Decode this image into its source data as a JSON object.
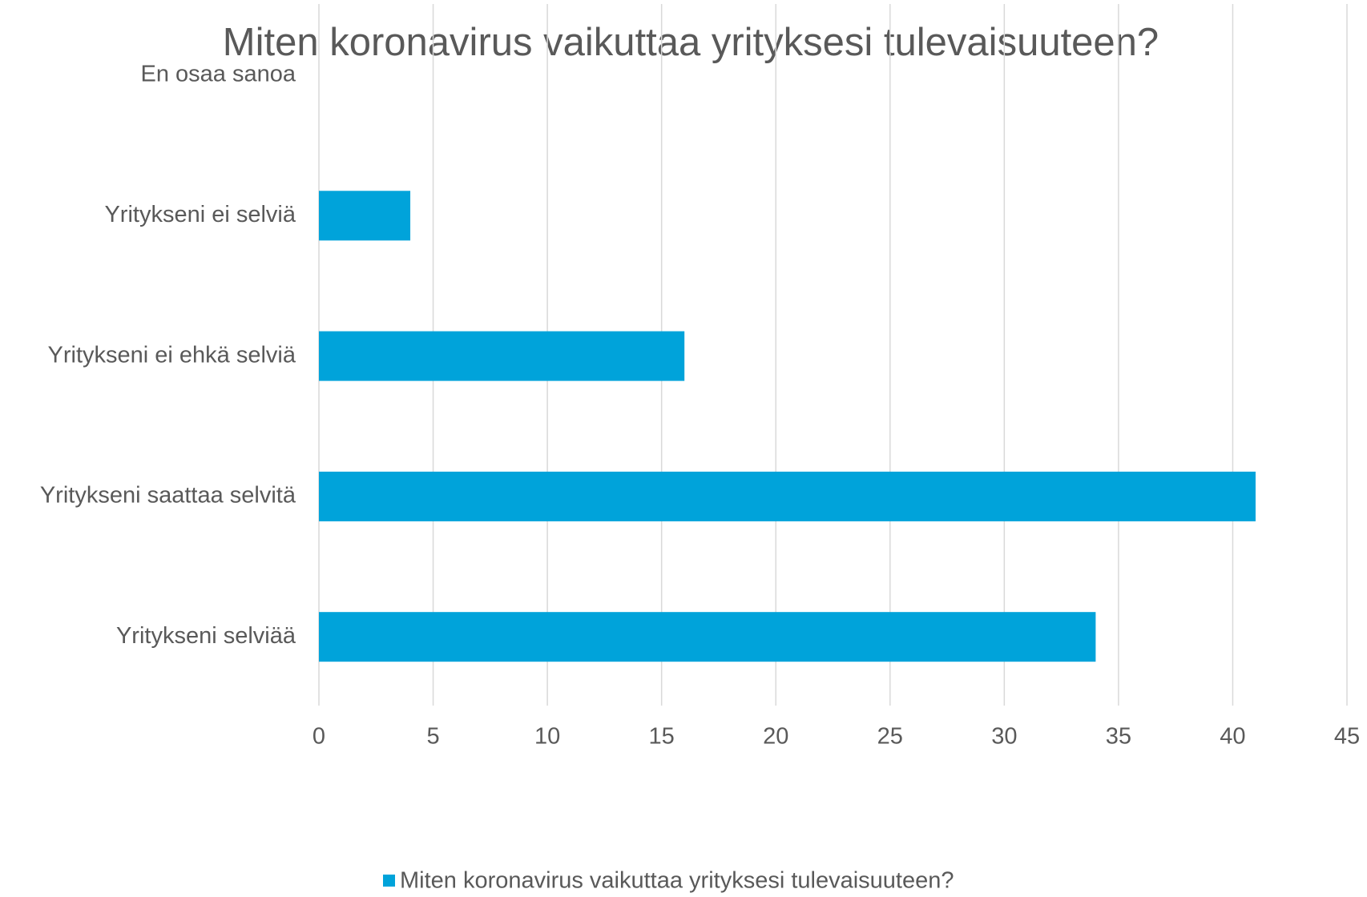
{
  "chart_data": {
    "type": "bar",
    "orientation": "horizontal",
    "title": "Miten koronavirus vaikuttaa yrityksesi tulevaisuuteen?",
    "categories": [
      "En osaa sanoa",
      "Yritykseni ei selviä",
      "Yritykseni ei ehkä selviä",
      "Yritykseni saattaa selvitä",
      "Yritykseni selviää"
    ],
    "series": [
      {
        "name": "Miten koronavirus vaikuttaa yrityksesi tulevaisuuteen?",
        "color": "#00a3da",
        "values": [
          0,
          4,
          16,
          41,
          34
        ]
      }
    ],
    "xlim": [
      0,
      45
    ],
    "xticks": [
      0,
      5,
      10,
      15,
      20,
      25,
      30,
      35,
      40,
      45
    ],
    "grid": true,
    "legend": "bottom"
  }
}
